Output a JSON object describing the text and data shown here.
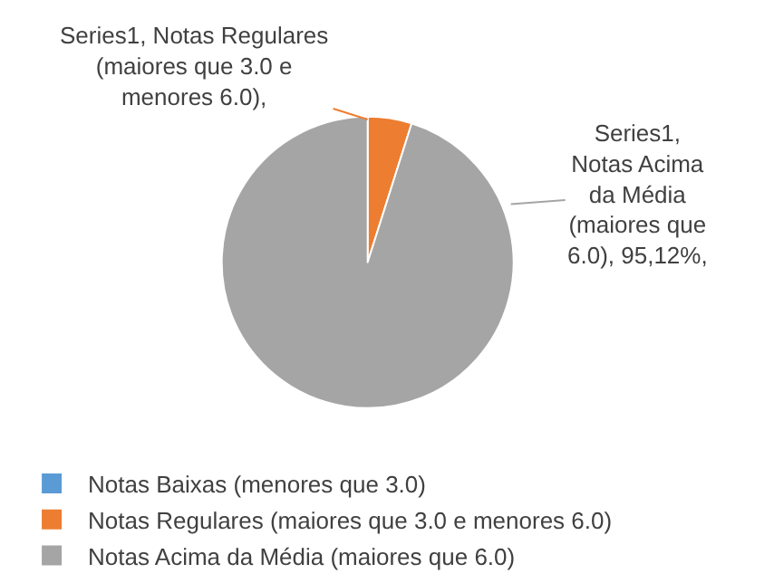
{
  "chart_data": {
    "type": "pie",
    "categories": [
      "Notas Baixas (menores que 3.0)",
      "Notas Regulares (maiores que 3.0 e menores 6.0)",
      "Notas Acima da Média (maiores que 6.0)"
    ],
    "values": [
      0,
      4.88,
      95.12
    ],
    "colors": [
      "#5b9bd5",
      "#ed7d31",
      "#a5a5a5"
    ],
    "value_labels": [
      null,
      "Series1, Notas Regulares (maiores que 3.0 e menores 6.0),",
      "Series1, Notas Acima da Média (maiores que 6.0), 95,12%,"
    ],
    "legend": "bottom left"
  }
}
